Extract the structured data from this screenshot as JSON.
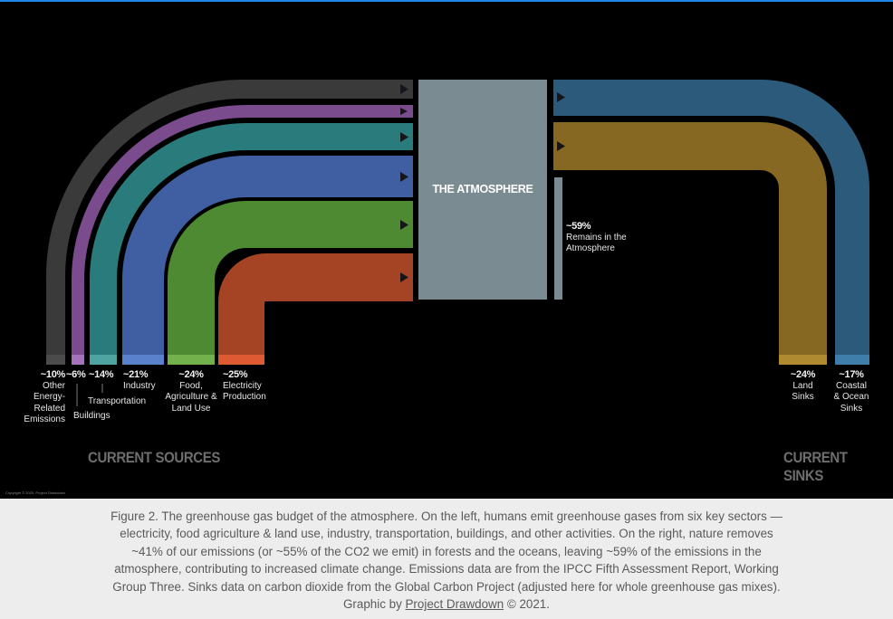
{
  "atmosphere": {
    "title": "THE ATMOSPHERE"
  },
  "sources": [
    {
      "pct": "~10%",
      "label": "Other Energy-Related Emissions",
      "color": "#3a3a3a"
    },
    {
      "pct": "~6%",
      "label": "Buildings",
      "color": "#7a4c8e"
    },
    {
      "pct": "~14%",
      "label": "Transportation",
      "color": "#2a7b7b"
    },
    {
      "pct": "~21%",
      "label": "Industry",
      "color": "#3f5fa2"
    },
    {
      "pct": "~24%",
      "label": "Food, Agriculture & Land Use",
      "color": "#4e8a32"
    },
    {
      "pct": "~25%",
      "label": "Electricity Production",
      "color": "#a54425"
    }
  ],
  "sinks": [
    {
      "pct": "~24%",
      "label": "Land Sinks",
      "color": "#866822"
    },
    {
      "pct": "~17%",
      "label": "Coastal & Ocean Sinks",
      "color": "#2c5a7b"
    }
  ],
  "remains": {
    "pct": "~59%",
    "label": "Remains in the Atmosphere",
    "color": "#7b8b92"
  },
  "headings": {
    "sources": "CURRENT SOURCES",
    "sinks": "CURRENT SINKS"
  },
  "copyright": "Copyright © 2020, Project Drawdown",
  "caption": {
    "text_before_link": "Figure 2. The greenhouse gas budget of the atmosphere. On the left, humans emit greenhouse gases from six key sectors — electricity, food agriculture & land use, industry, transportation, buildings, and other activities. On the right, nature removes ~41% of our emissions (or ~55% of the CO2 we emit) in forests and the oceans, leaving ~59% of the emissions in the atmosphere, contributing to increased climate change. Emissions data are from the IPCC Fifth Assessment Report, Working Group Three. Sinks data on carbon dioxide from the Global Carbon Project (adjusted here for whole greenhouse gas mixes). Graphic by ",
    "link": "Project Drawdown",
    "text_after_link": " © 2021."
  }
}
